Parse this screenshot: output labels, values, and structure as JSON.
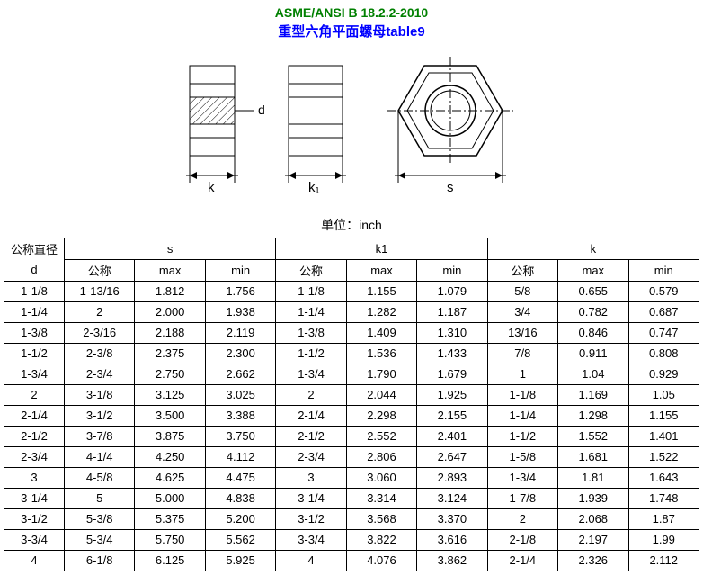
{
  "title_std": "ASME/ANSI B 18.2.2-2010",
  "title_cn": "重型六角平面螺母table9",
  "unit_label": "单位：inch",
  "diagram": {
    "labels": {
      "d": "d",
      "k": "k",
      "k1": "k1",
      "s": "s"
    },
    "stroke": "#000000",
    "hatch": "#000000",
    "bg": "#ffffff"
  },
  "header": {
    "d_label": "公称直径",
    "d_sym": "d",
    "s": "s",
    "k1": "k1",
    "k": "k",
    "nom": "公称",
    "max": "max",
    "min": "min"
  },
  "rows": [
    {
      "d": "1-1/8",
      "s_nom": "1-13/16",
      "s_max": "1.812",
      "s_min": "1.756",
      "k1_nom": "1-1/8",
      "k1_max": "1.155",
      "k1_min": "1.079",
      "k_nom": "5/8",
      "k_max": "0.655",
      "k_min": "0.579"
    },
    {
      "d": "1-1/4",
      "s_nom": "2",
      "s_max": "2.000",
      "s_min": "1.938",
      "k1_nom": "1-1/4",
      "k1_max": "1.282",
      "k1_min": "1.187",
      "k_nom": "3/4",
      "k_max": "0.782",
      "k_min": "0.687"
    },
    {
      "d": "1-3/8",
      "s_nom": "2-3/16",
      "s_max": "2.188",
      "s_min": "2.119",
      "k1_nom": "1-3/8",
      "k1_max": "1.409",
      "k1_min": "1.310",
      "k_nom": "13/16",
      "k_max": "0.846",
      "k_min": "0.747"
    },
    {
      "d": "1-1/2",
      "s_nom": "2-3/8",
      "s_max": "2.375",
      "s_min": "2.300",
      "k1_nom": "1-1/2",
      "k1_max": "1.536",
      "k1_min": "1.433",
      "k_nom": "7/8",
      "k_max": "0.911",
      "k_min": "0.808"
    },
    {
      "d": "1-3/4",
      "s_nom": "2-3/4",
      "s_max": "2.750",
      "s_min": "2.662",
      "k1_nom": "1-3/4",
      "k1_max": "1.790",
      "k1_min": "1.679",
      "k_nom": "1",
      "k_max": "1.04",
      "k_min": "0.929"
    },
    {
      "d": "2",
      "s_nom": "3-1/8",
      "s_max": "3.125",
      "s_min": "3.025",
      "k1_nom": "2",
      "k1_max": "2.044",
      "k1_min": "1.925",
      "k_nom": "1-1/8",
      "k_max": "1.169",
      "k_min": "1.05"
    },
    {
      "d": "2-1/4",
      "s_nom": "3-1/2",
      "s_max": "3.500",
      "s_min": "3.388",
      "k1_nom": "2-1/4",
      "k1_max": "2.298",
      "k1_min": "2.155",
      "k_nom": "1-1/4",
      "k_max": "1.298",
      "k_min": "1.155"
    },
    {
      "d": "2-1/2",
      "s_nom": "3-7/8",
      "s_max": "3.875",
      "s_min": "3.750",
      "k1_nom": "2-1/2",
      "k1_max": "2.552",
      "k1_min": "2.401",
      "k_nom": "1-1/2",
      "k_max": "1.552",
      "k_min": "1.401"
    },
    {
      "d": "2-3/4",
      "s_nom": "4-1/4",
      "s_max": "4.250",
      "s_min": "4.112",
      "k1_nom": "2-3/4",
      "k1_max": "2.806",
      "k1_min": "2.647",
      "k_nom": "1-5/8",
      "k_max": "1.681",
      "k_min": "1.522"
    },
    {
      "d": "3",
      "s_nom": "4-5/8",
      "s_max": "4.625",
      "s_min": "4.475",
      "k1_nom": "3",
      "k1_max": "3.060",
      "k1_min": "2.893",
      "k_nom": "1-3/4",
      "k_max": "1.81",
      "k_min": "1.643"
    },
    {
      "d": "3-1/4",
      "s_nom": "5",
      "s_max": "5.000",
      "s_min": "4.838",
      "k1_nom": "3-1/4",
      "k1_max": "3.314",
      "k1_min": "3.124",
      "k_nom": "1-7/8",
      "k_max": "1.939",
      "k_min": "1.748"
    },
    {
      "d": "3-1/2",
      "s_nom": "5-3/8",
      "s_max": "5.375",
      "s_min": "5.200",
      "k1_nom": "3-1/2",
      "k1_max": "3.568",
      "k1_min": "3.370",
      "k_nom": "2",
      "k_max": "2.068",
      "k_min": "1.87"
    },
    {
      "d": "3-3/4",
      "s_nom": "5-3/4",
      "s_max": "5.750",
      "s_min": "5.562",
      "k1_nom": "3-3/4",
      "k1_max": "3.822",
      "k1_min": "3.616",
      "k_nom": "2-1/8",
      "k_max": "2.197",
      "k_min": "1.99"
    },
    {
      "d": "4",
      "s_nom": "6-1/8",
      "s_max": "6.125",
      "s_min": "5.925",
      "k1_nom": "4",
      "k1_max": "4.076",
      "k1_min": "3.862",
      "k_nom": "2-1/4",
      "k_max": "2.326",
      "k_min": "2.112"
    }
  ]
}
